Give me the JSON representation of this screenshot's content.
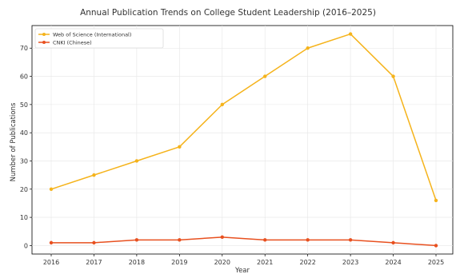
{
  "chart_data": {
    "type": "line",
    "title": "Annual Publication Trends on College Student Leadership (2016–2025)",
    "xlabel": "Year",
    "ylabel": "Number of Publications",
    "x": [
      2016,
      2017,
      2018,
      2019,
      2020,
      2021,
      2022,
      2023,
      2024,
      2025
    ],
    "ylim": [
      -3,
      78
    ],
    "yticks": [
      0,
      10,
      20,
      30,
      40,
      50,
      60,
      70
    ],
    "grid": true,
    "legend_position": "top-left",
    "series": [
      {
        "name": "Web of Science (International)",
        "color": "#f5b31b",
        "values": [
          20,
          25,
          30,
          35,
          50,
          60,
          70,
          75,
          60,
          16
        ]
      },
      {
        "name": "CNKI (Chinese)",
        "color": "#e8501f",
        "values": [
          1,
          1,
          2,
          2,
          3,
          2,
          2,
          2,
          1,
          0
        ]
      }
    ]
  }
}
